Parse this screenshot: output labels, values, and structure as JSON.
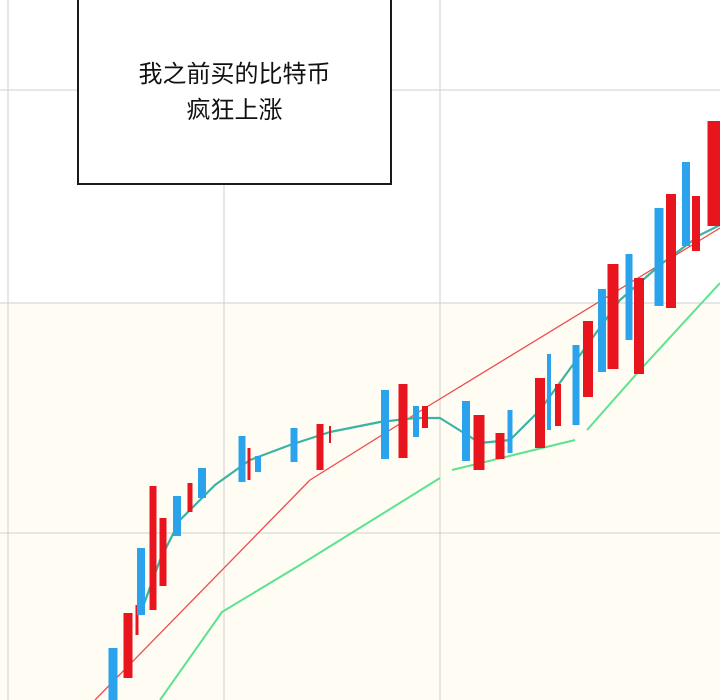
{
  "caption": {
    "line1": "我之前买的比特币",
    "line2": "疯狂上涨"
  },
  "colors": {
    "up_candle": "#e8141e",
    "down_candle": "#2aa3ec",
    "ma_teal": "#3bb3a3",
    "ma_red": "#f04b4b",
    "ma_green": "#5be38f",
    "grid": "#cfcfcf"
  },
  "icons": [
    "candlestick-chart"
  ]
}
